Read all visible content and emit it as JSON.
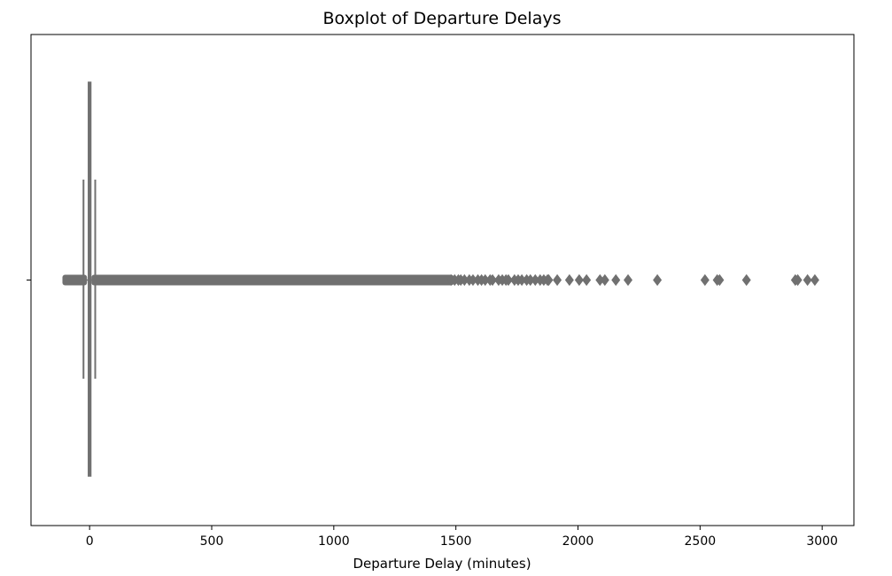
{
  "chart_data": {
    "type": "boxplot",
    "title": "Boxplot of Departure Delays",
    "xlabel": "Departure Delay (minutes)",
    "ylabel": "",
    "xlim": [
      -240,
      3130
    ],
    "xticks": [
      0,
      500,
      1000,
      1500,
      2000,
      2500,
      3000
    ],
    "xtick_labels": [
      "0",
      "500",
      "1000",
      "1500",
      "2000",
      "2500",
      "3000"
    ],
    "grid": false,
    "color": "#707070",
    "box": {
      "q1": -5,
      "median": -1,
      "q3": 5,
      "whisker_low": -25,
      "whisker_high": 23
    },
    "outlier_range_dense": [
      24,
      1475
    ],
    "outlier_range_dense_low": [
      -95,
      -27
    ],
    "outliers": [
      1480,
      1495,
      1510,
      1520,
      1535,
      1555,
      1570,
      1590,
      1605,
      1620,
      1640,
      1650,
      1675,
      1690,
      1705,
      1715,
      1740,
      1755,
      1770,
      1790,
      1805,
      1825,
      1845,
      1860,
      1875,
      1880,
      1915,
      1965,
      2005,
      2035,
      2090,
      2110,
      2155,
      2205,
      2325,
      2520,
      2570,
      2580,
      2690,
      2890,
      2900,
      2940,
      2970
    ]
  }
}
